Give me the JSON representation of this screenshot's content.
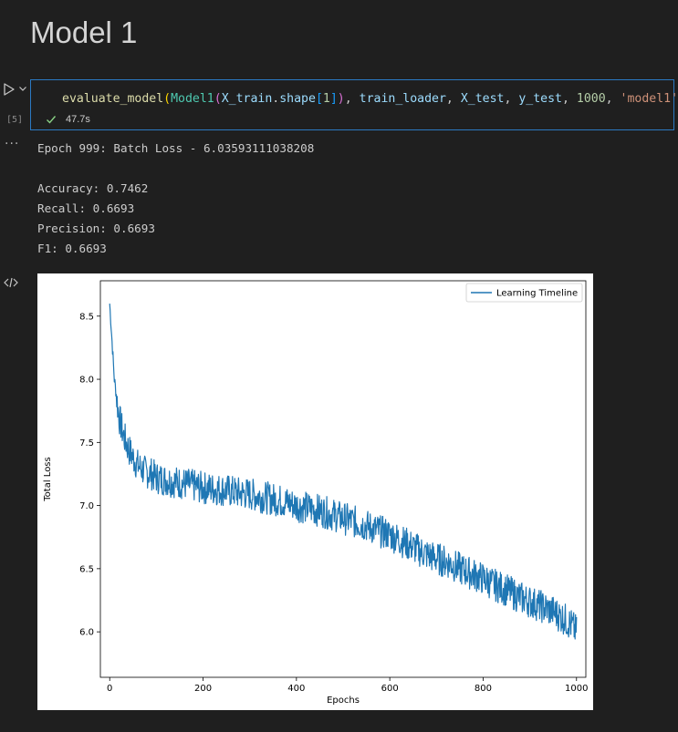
{
  "markdown": {
    "heading": "Model 1"
  },
  "cell": {
    "execution_count": "[5]",
    "code_tokens": [
      {
        "text": "evaluate_model",
        "cls": "tok-fn"
      },
      {
        "text": "(",
        "cls": "tok-paren1"
      },
      {
        "text": "Model1",
        "cls": "tok-cls"
      },
      {
        "text": "(",
        "cls": "tok-paren2"
      },
      {
        "text": "X_train",
        "cls": "tok-var"
      },
      {
        "text": ".",
        "cls": "tok-plain"
      },
      {
        "text": "shape",
        "cls": "tok-var"
      },
      {
        "text": "[",
        "cls": "tok-bracket"
      },
      {
        "text": "1",
        "cls": "tok-num"
      },
      {
        "text": "]",
        "cls": "tok-bracket"
      },
      {
        "text": ")",
        "cls": "tok-paren2"
      },
      {
        "text": ", ",
        "cls": "tok-plain"
      },
      {
        "text": "train_loader",
        "cls": "tok-var"
      },
      {
        "text": ", ",
        "cls": "tok-plain"
      },
      {
        "text": "X_test",
        "cls": "tok-var"
      },
      {
        "text": ", ",
        "cls": "tok-plain"
      },
      {
        "text": "y_test",
        "cls": "tok-var"
      },
      {
        "text": ", ",
        "cls": "tok-plain"
      },
      {
        "text": "1000",
        "cls": "tok-num"
      },
      {
        "text": ", ",
        "cls": "tok-plain"
      },
      {
        "text": "'model1'",
        "cls": "tok-str"
      },
      {
        "text": ")",
        "cls": "tok-paren1"
      }
    ],
    "status_time": "47.7s",
    "status_color": "#89d185"
  },
  "output": {
    "lines": [
      "Epoch 999: Batch Loss - 6.03593111038208",
      "",
      "Accuracy: 0.7462",
      "Recall: 0.6693",
      "Precision: 0.6693",
      "F1: 0.6693"
    ]
  },
  "icons": {
    "run": "play-icon",
    "run_menu": "chevron-down-icon",
    "status": "check-icon",
    "output_more": "ellipsis-icon",
    "output_type": "code-icon"
  },
  "chart_data": {
    "type": "line",
    "title": "",
    "xlabel": "Epochs",
    "ylabel": "Total Loss",
    "xlim": [
      -20,
      1020
    ],
    "ylim": [
      5.64,
      8.78
    ],
    "xticks": [
      0,
      200,
      400,
      600,
      800,
      1000
    ],
    "yticks": [
      6.0,
      6.5,
      7.0,
      7.5,
      8.0,
      8.5
    ],
    "grid": false,
    "legend": "top-right",
    "color": "#1f77b4",
    "series": [
      {
        "name": "Learning Timeline",
        "x": [
          0,
          5,
          10,
          15,
          20,
          30,
          40,
          50,
          60,
          75,
          90,
          100,
          125,
          150,
          175,
          200,
          225,
          250,
          275,
          300,
          325,
          350,
          375,
          400,
          425,
          450,
          475,
          500,
          525,
          550,
          575,
          600,
          625,
          650,
          675,
          700,
          725,
          750,
          775,
          800,
          825,
          850,
          875,
          900,
          925,
          950,
          975,
          990,
          1000
        ],
        "y": [
          8.6,
          8.3,
          8.0,
          7.85,
          7.7,
          7.55,
          7.45,
          7.38,
          7.32,
          7.27,
          7.25,
          7.22,
          7.2,
          7.18,
          7.16,
          7.14,
          7.13,
          7.12,
          7.1,
          7.09,
          7.07,
          7.05,
          7.03,
          7.0,
          6.98,
          6.96,
          6.93,
          6.9,
          6.87,
          6.84,
          6.8,
          6.77,
          6.72,
          6.67,
          6.62,
          6.58,
          6.55,
          6.5,
          6.46,
          6.42,
          6.37,
          6.33,
          6.28,
          6.24,
          6.2,
          6.16,
          6.1,
          6.05,
          6.0
        ]
      }
    ]
  }
}
